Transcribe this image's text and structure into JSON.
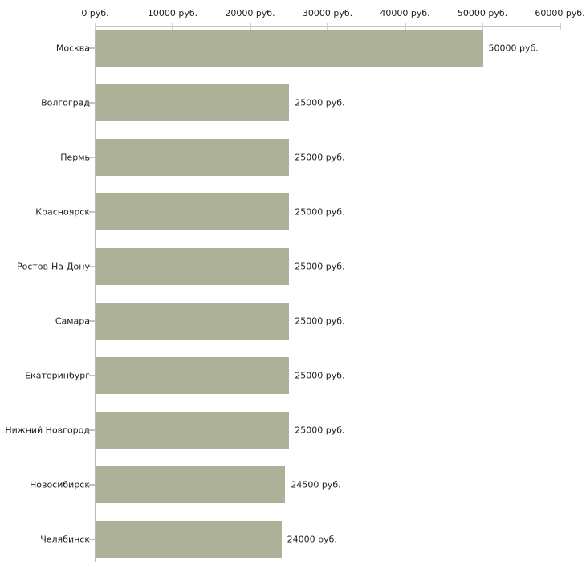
{
  "chart_data": {
    "type": "bar",
    "orientation": "horizontal",
    "title": "",
    "xlabel": "",
    "ylabel": "",
    "xlim": [
      0,
      60000
    ],
    "grid": false,
    "legend": false,
    "unit": "руб.",
    "categories": [
      "Москва",
      "Волгоград",
      "Пермь",
      "Красноярск",
      "Ростов-На-Дону",
      "Самара",
      "Екатеринбург",
      "Нижний Новгород",
      "Новосибирск",
      "Челябинск"
    ],
    "values": [
      50000,
      25000,
      25000,
      25000,
      25000,
      25000,
      25000,
      25000,
      24500,
      24000
    ],
    "value_labels": [
      "50000 руб.",
      "25000 руб.",
      "25000 руб.",
      "25000 руб.",
      "25000 руб.",
      "25000 руб.",
      "25000 руб.",
      "25000 руб.",
      "24500 руб.",
      "24000 руб."
    ],
    "x_ticks": [
      {
        "value": 0,
        "label": "0 руб."
      },
      {
        "value": 10000,
        "label": "10000 руб."
      },
      {
        "value": 20000,
        "label": "20000 руб."
      },
      {
        "value": 30000,
        "label": "30000 руб."
      },
      {
        "value": 40000,
        "label": "40000 руб."
      },
      {
        "value": 50000,
        "label": "50000 руб."
      },
      {
        "value": 60000,
        "label": "60000 руб."
      }
    ],
    "colors": {
      "bar": "#acb198",
      "axis_line": "#c3c3c3",
      "tick_mark": "#d6d2b0",
      "text": "#222222",
      "background": "#ffffff"
    }
  }
}
